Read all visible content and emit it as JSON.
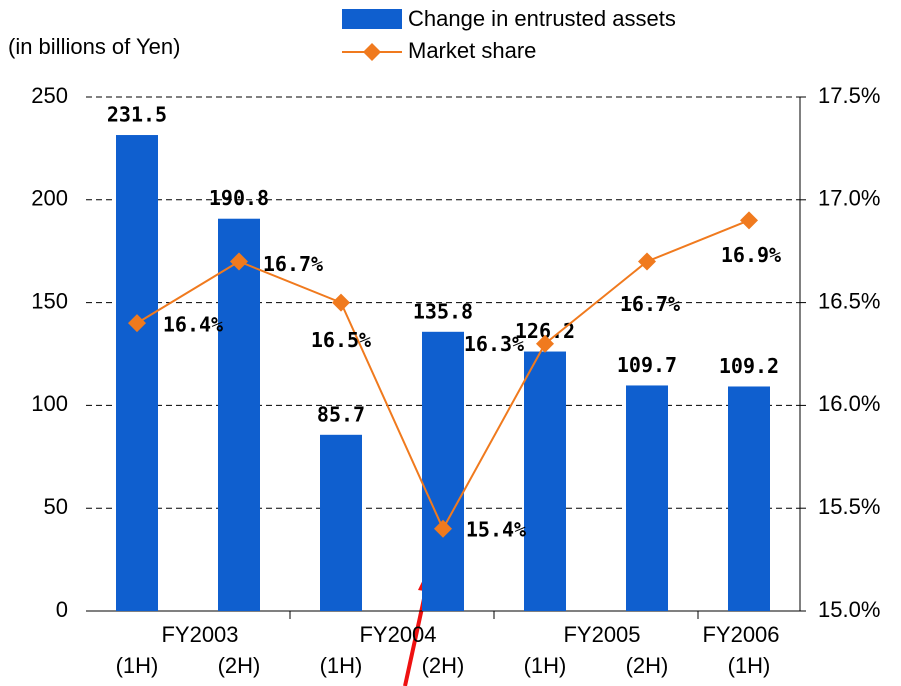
{
  "chart_data": {
    "type": "bar_line",
    "y_axis_label": "(in billions of Yen)",
    "categories": [
      "(1H)",
      "(2H)",
      "(1H)",
      "(2H)",
      "(1H)",
      "(2H)",
      "(1H)"
    ],
    "groups": [
      "FY2003",
      "FY2004",
      "FY2005",
      "FY2006"
    ],
    "series": [
      {
        "name": "Change in entrusted assets",
        "type": "bar",
        "color": "#0f5fcf",
        "values": [
          231.5,
          190.8,
          85.7,
          135.8,
          126.2,
          109.7,
          109.2
        ]
      },
      {
        "name": "Market share",
        "type": "line",
        "axis": "y2",
        "color": "#f07a1e",
        "values": [
          16.4,
          16.7,
          16.5,
          15.4,
          16.3,
          16.7,
          16.9
        ],
        "value_labels": [
          "16.4%",
          "16.7%",
          "16.5%",
          "15.4%",
          "16.3%",
          "16.7%",
          "16.9%"
        ]
      }
    ],
    "ylim": [
      0,
      250
    ],
    "yticks": [
      0,
      50,
      100,
      150,
      200,
      250
    ],
    "y2lim": [
      15.0,
      17.5
    ],
    "y2ticks": [
      {
        "value": 15.0,
        "label": "15.0%"
      },
      {
        "value": 15.5,
        "label": "15.5%"
      },
      {
        "value": 16.0,
        "label": "16.0%"
      },
      {
        "value": 16.5,
        "label": "16.5%"
      },
      {
        "value": 17.0,
        "label": "17.0%"
      },
      {
        "value": 17.5,
        "label": "17.5%"
      }
    ],
    "grid": true
  }
}
